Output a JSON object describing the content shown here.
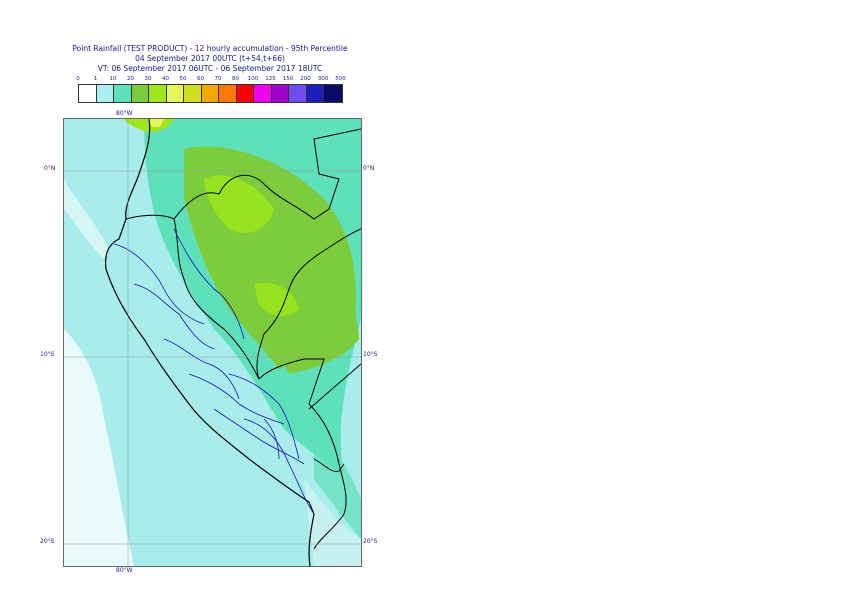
{
  "title": {
    "line1": "Point Rainfall (TEST PRODUCT) - 12 hourly accumulation - 95th Percentile",
    "line2": "04 September 2017 00UTC (t+54,t+66)",
    "line3": "VT: 06 September 2017 06UTC - 06 September 2017 18UTC"
  },
  "legend": {
    "ticks": [
      "0",
      "1",
      "10",
      "20",
      "30",
      "40",
      "50",
      "60",
      "70",
      "80",
      "100",
      "125",
      "150",
      "200",
      "300",
      "500"
    ],
    "colors": [
      "#ffffff",
      "#aaf0f0",
      "#5ee0b8",
      "#7ccc3c",
      "#9ee61a",
      "#e6f55a",
      "#d0dc1e",
      "#f0a800",
      "#ff7800",
      "#ff0000",
      "#ee00ee",
      "#a000c8",
      "#6e4ef0",
      "#1e1ebe",
      "#0a0a64"
    ]
  },
  "map": {
    "lon_label_top": "80°W",
    "lon_label_bottom": "80°W",
    "lat_labels": [
      "0°N",
      "10°S",
      "20°S"
    ],
    "region": "Peru and surrounding area"
  },
  "colors": {
    "land_boundary": "#000000",
    "admin_boundary": "#1010c8",
    "text": "#1a1a8c"
  }
}
